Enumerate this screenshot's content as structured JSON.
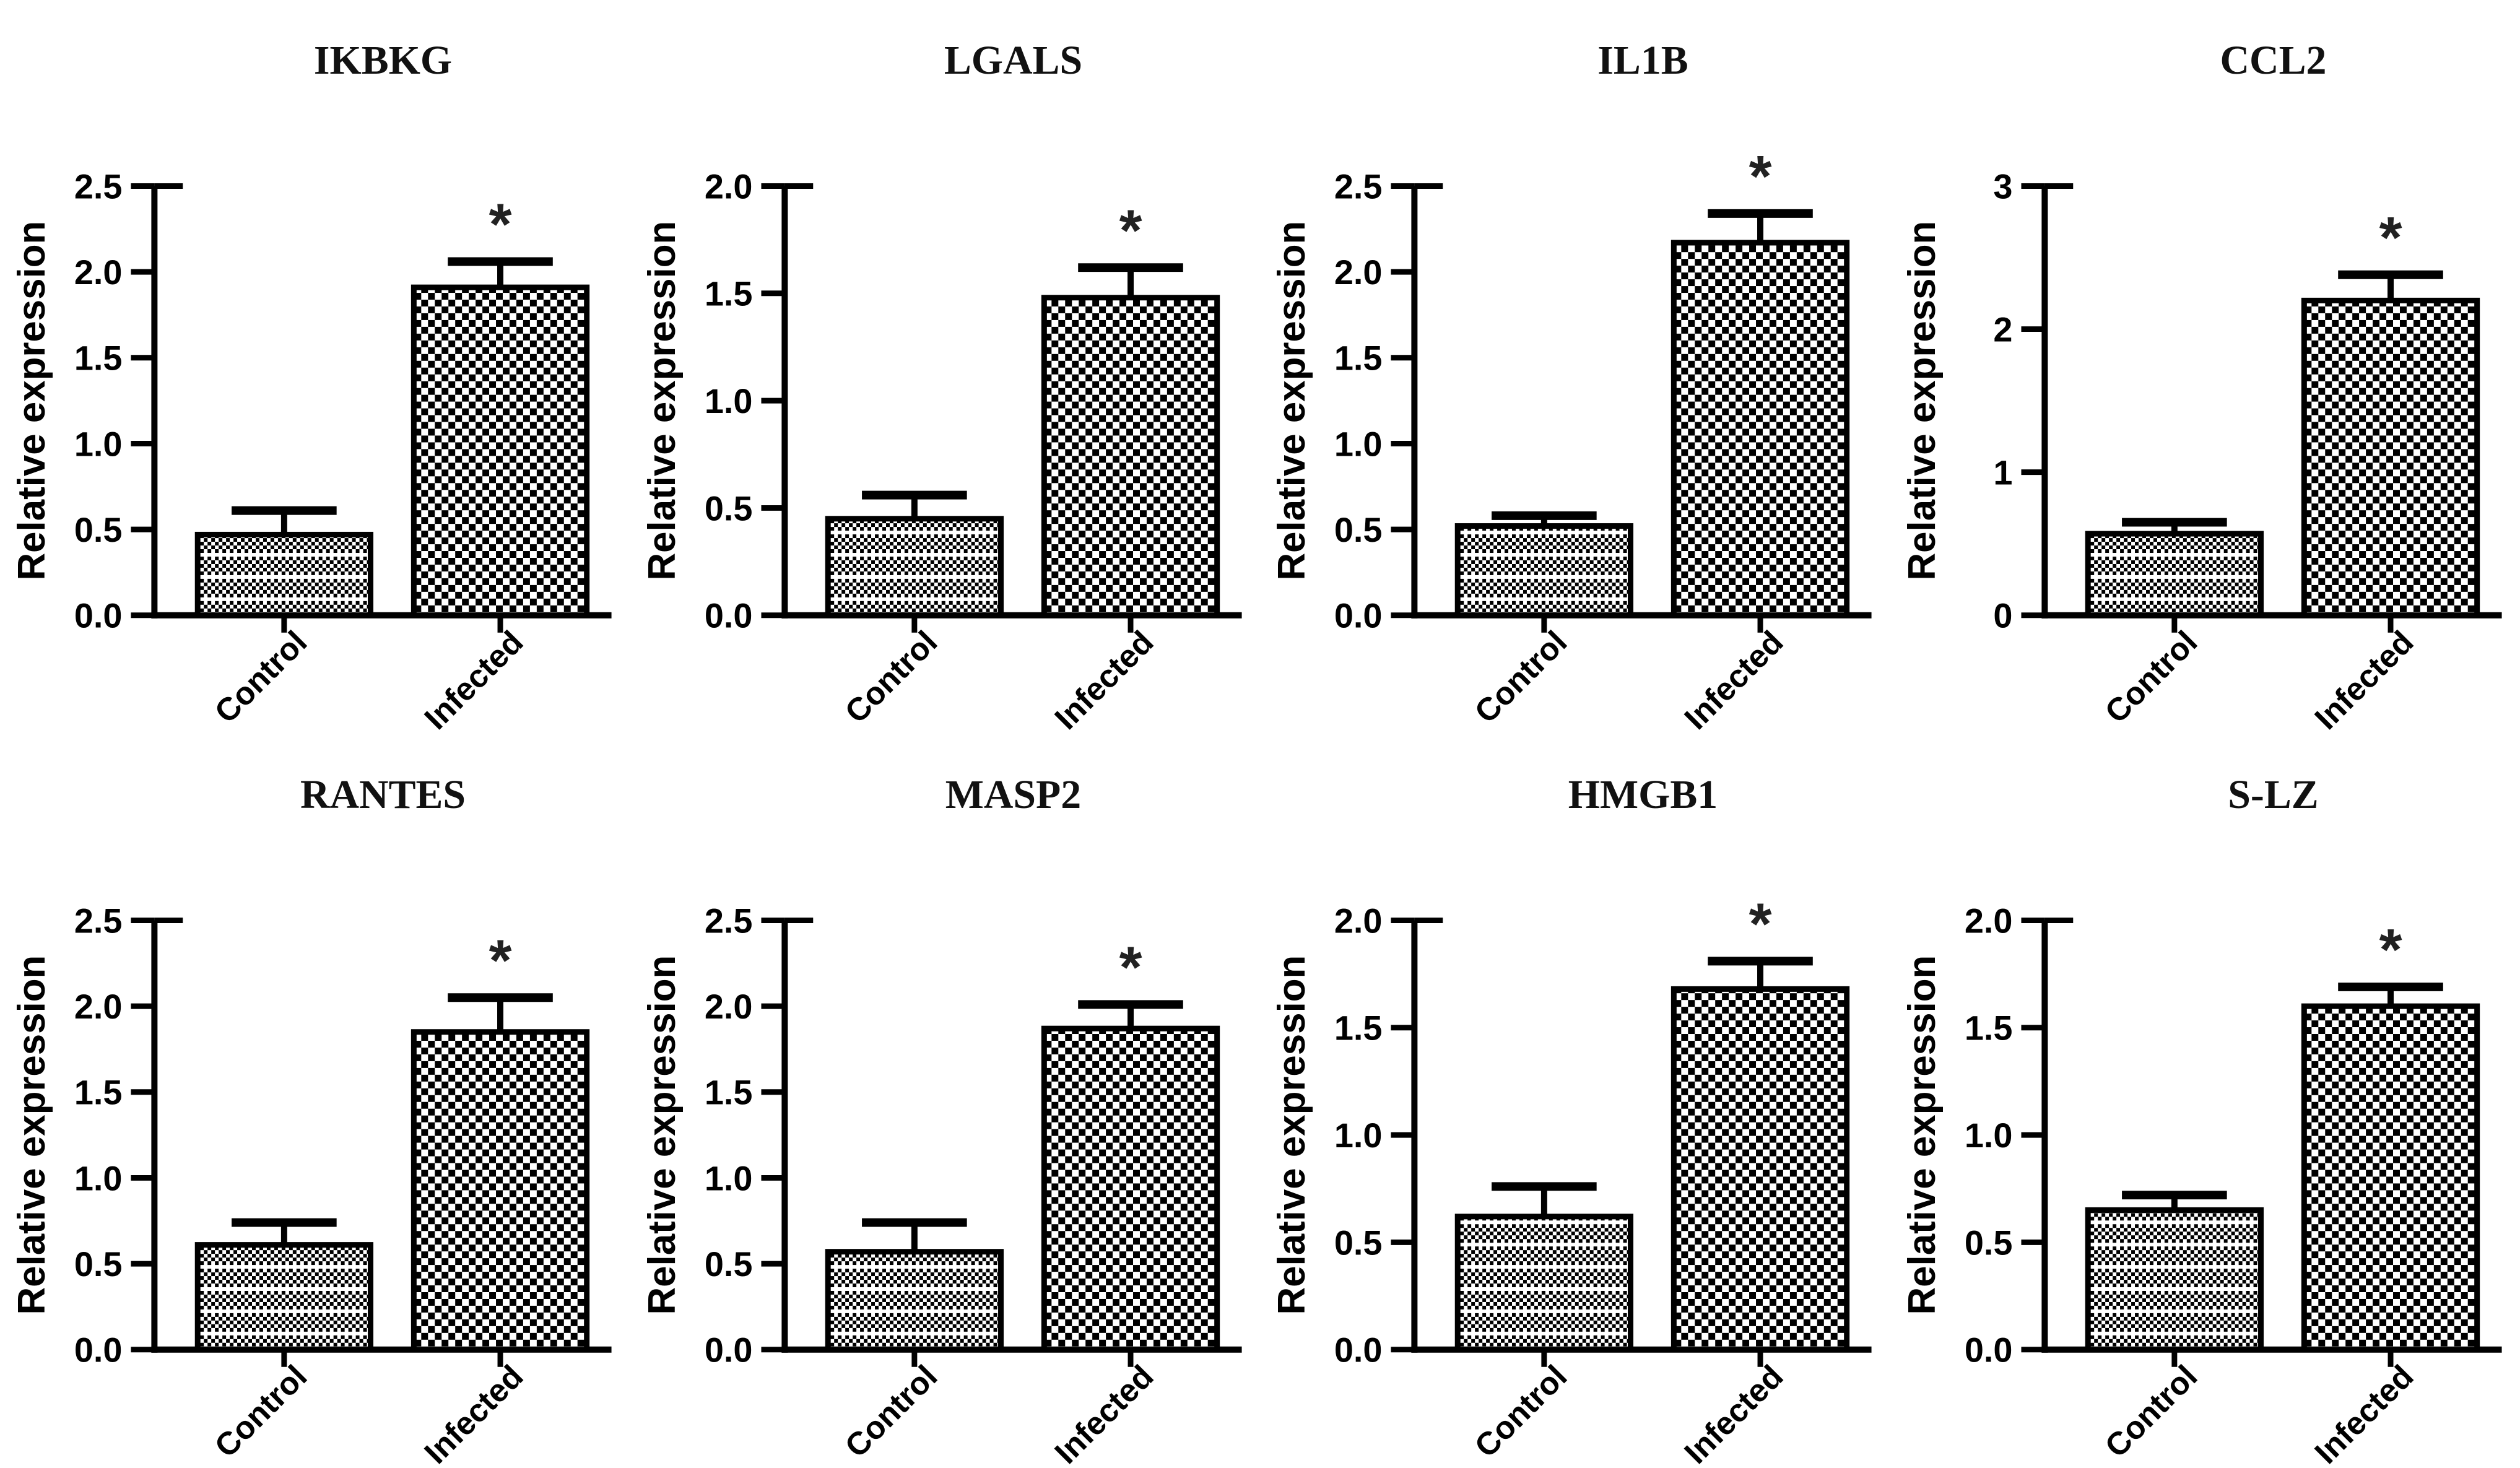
{
  "figure": {
    "categories": [
      "Control",
      "Infected"
    ],
    "ylabel": "Relative expression",
    "significance_marker": "*",
    "colors": {
      "ink": "#000000",
      "title": "#111111",
      "bar_fill": "#ffffff",
      "background": "#ffffff"
    },
    "bar_patterns": {
      "control": "dense-checker-with-white-stripes",
      "infected": "coarse-checker"
    }
  },
  "chart_data": [
    {
      "type": "bar",
      "title": "IKBKG",
      "ylabel": "Relative expression",
      "categories": [
        "Control",
        "Infected"
      ],
      "values": [
        0.47,
        1.91
      ],
      "errors_upper": [
        0.14,
        0.15
      ],
      "ylim": [
        0,
        2.5
      ],
      "yticks": [
        0.0,
        0.5,
        1.0,
        1.5,
        2.0,
        2.5
      ],
      "ytick_labels": [
        "0.0",
        "0.5",
        "1.0",
        "1.5",
        "2.0",
        "2.5"
      ],
      "significance": {
        "category": "Infected",
        "label": "*"
      },
      "grid": false,
      "legend": false
    },
    {
      "type": "bar",
      "title": "LGALS",
      "ylabel": "Relative expression",
      "categories": [
        "Control",
        "Infected"
      ],
      "values": [
        0.45,
        1.48
      ],
      "errors_upper": [
        0.11,
        0.14
      ],
      "ylim": [
        0,
        2.0
      ],
      "yticks": [
        0.0,
        0.5,
        1.0,
        1.5,
        2.0
      ],
      "ytick_labels": [
        "0.0",
        "0.5",
        "1.0",
        "1.5",
        "2.0"
      ],
      "significance": {
        "category": "Infected",
        "label": "*"
      },
      "grid": false,
      "legend": false
    },
    {
      "type": "bar",
      "title": "IL1B",
      "ylabel": "Relative expression",
      "categories": [
        "Control",
        "Infected"
      ],
      "values": [
        0.52,
        2.17
      ],
      "errors_upper": [
        0.06,
        0.17
      ],
      "ylim": [
        0,
        2.5
      ],
      "yticks": [
        0.0,
        0.5,
        1.0,
        1.5,
        2.0,
        2.5
      ],
      "ytick_labels": [
        "0.0",
        "0.5",
        "1.0",
        "1.5",
        "2.0",
        "2.5"
      ],
      "significance": {
        "category": "Infected",
        "label": "*"
      },
      "grid": false,
      "legend": false
    },
    {
      "type": "bar",
      "title": "CCL2",
      "ylabel": "Relative expression",
      "categories": [
        "Control",
        "Infected"
      ],
      "values": [
        0.57,
        2.2
      ],
      "errors_upper": [
        0.08,
        0.18
      ],
      "ylim": [
        0,
        3
      ],
      "yticks": [
        0,
        1,
        2,
        3
      ],
      "ytick_labels": [
        "0",
        "1",
        "2",
        "3"
      ],
      "significance": {
        "category": "Infected",
        "label": "*"
      },
      "grid": false,
      "legend": false
    },
    {
      "type": "bar",
      "title": "RANTES",
      "ylabel": "Relative expression",
      "categories": [
        "Control",
        "Infected"
      ],
      "values": [
        0.61,
        1.85
      ],
      "errors_upper": [
        0.13,
        0.2
      ],
      "ylim": [
        0,
        2.5
      ],
      "yticks": [
        0.0,
        0.5,
        1.0,
        1.5,
        2.0,
        2.5
      ],
      "ytick_labels": [
        "0.0",
        "0.5",
        "1.0",
        "1.5",
        "2.0",
        "2.5"
      ],
      "significance": {
        "category": "Infected",
        "label": "*"
      },
      "grid": false,
      "legend": false
    },
    {
      "type": "bar",
      "title": "MASP2",
      "ylabel": "Relative expression",
      "categories": [
        "Control",
        "Infected"
      ],
      "values": [
        0.57,
        1.87
      ],
      "errors_upper": [
        0.17,
        0.14
      ],
      "ylim": [
        0,
        2.5
      ],
      "yticks": [
        0.0,
        0.5,
        1.0,
        1.5,
        2.0,
        2.5
      ],
      "ytick_labels": [
        "0.0",
        "0.5",
        "1.0",
        "1.5",
        "2.0",
        "2.5"
      ],
      "significance": {
        "category": "Infected",
        "label": "*"
      },
      "grid": false,
      "legend": false
    },
    {
      "type": "bar",
      "title": "HMGB1",
      "ylabel": "Relative expression",
      "categories": [
        "Control",
        "Infected"
      ],
      "values": [
        0.62,
        1.68
      ],
      "errors_upper": [
        0.14,
        0.13
      ],
      "ylim": [
        0,
        2.0
      ],
      "yticks": [
        0.0,
        0.5,
        1.0,
        1.5,
        2.0
      ],
      "ytick_labels": [
        "0.0",
        "0.5",
        "1.0",
        "1.5",
        "2.0"
      ],
      "significance": {
        "category": "Infected",
        "label": "*"
      },
      "grid": false,
      "legend": false
    },
    {
      "type": "bar",
      "title": "S-LZ",
      "ylabel": "Relative expression",
      "categories": [
        "Control",
        "Infected"
      ],
      "values": [
        0.65,
        1.6
      ],
      "errors_upper": [
        0.07,
        0.09
      ],
      "ylim": [
        0,
        2.0
      ],
      "yticks": [
        0.0,
        0.5,
        1.0,
        1.5,
        2.0
      ],
      "ytick_labels": [
        "0.0",
        "0.5",
        "1.0",
        "1.5",
        "2.0"
      ],
      "significance": {
        "category": "Infected",
        "label": "*"
      },
      "grid": false,
      "legend": false
    }
  ]
}
